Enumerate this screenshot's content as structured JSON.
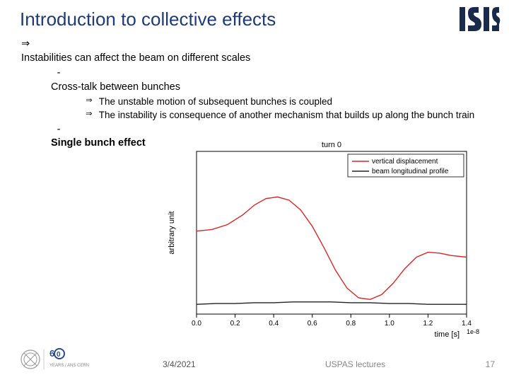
{
  "title": "Introduction to collective effects",
  "bullets": {
    "l1": "Instabilities can affect the beam on different scales",
    "l2a": "Cross-talk between bunches",
    "l3a": "The unstable motion of subsequent bunches is coupled",
    "l3b": "The instability is consequence of another mechanism that builds up along the bunch train",
    "l2b": "Single bunch effect"
  },
  "chart": {
    "title": "turn 0",
    "legend": {
      "series1": "vertical displacement",
      "series2": "beam longitudinal profile",
      "color1": "#d62728",
      "color2": "#222222"
    },
    "xlabel": "time [s]",
    "ylabel": "arbitrary unit",
    "xscale_label": "1e-8",
    "xlim": [
      0.0,
      1.4
    ],
    "ylim": [
      -1.0,
      1.0
    ],
    "xticks": [
      0.0,
      0.2,
      0.4,
      0.6,
      0.8,
      1.0,
      1.2,
      1.4
    ],
    "tick_fontsize": 10,
    "label_fontsize": 11,
    "title_fontsize": 11,
    "background": "#ffffff",
    "axis_color": "#000000",
    "series_red": [
      [
        0.0,
        0.02
      ],
      [
        0.08,
        0.04
      ],
      [
        0.16,
        0.1
      ],
      [
        0.24,
        0.22
      ],
      [
        0.3,
        0.34
      ],
      [
        0.36,
        0.42
      ],
      [
        0.42,
        0.44
      ],
      [
        0.48,
        0.4
      ],
      [
        0.54,
        0.28
      ],
      [
        0.6,
        0.08
      ],
      [
        0.66,
        -0.18
      ],
      [
        0.72,
        -0.46
      ],
      [
        0.78,
        -0.68
      ],
      [
        0.84,
        -0.8
      ],
      [
        0.9,
        -0.82
      ],
      [
        0.96,
        -0.76
      ],
      [
        1.02,
        -0.62
      ],
      [
        1.08,
        -0.44
      ],
      [
        1.14,
        -0.3
      ],
      [
        1.2,
        -0.24
      ],
      [
        1.26,
        -0.25
      ],
      [
        1.32,
        -0.28
      ],
      [
        1.4,
        -0.3
      ]
    ],
    "series_black": [
      [
        0.0,
        -0.88
      ],
      [
        0.1,
        -0.87
      ],
      [
        0.2,
        -0.87
      ],
      [
        0.3,
        -0.86
      ],
      [
        0.4,
        -0.86
      ],
      [
        0.5,
        -0.85
      ],
      [
        0.6,
        -0.85
      ],
      [
        0.7,
        -0.85
      ],
      [
        0.8,
        -0.86
      ],
      [
        0.9,
        -0.86
      ],
      [
        1.0,
        -0.87
      ],
      [
        1.1,
        -0.87
      ],
      [
        1.2,
        -0.88
      ],
      [
        1.3,
        -0.88
      ],
      [
        1.4,
        -0.88
      ]
    ],
    "line_width": 1.4
  },
  "footer": {
    "date": "3/4/2021",
    "center": "USPAS lectures",
    "page": "17",
    "cern_text": "YEARS / ANS CERN"
  },
  "colors": {
    "title": "#1f3b77",
    "text": "#000000",
    "footer": "#888888"
  }
}
